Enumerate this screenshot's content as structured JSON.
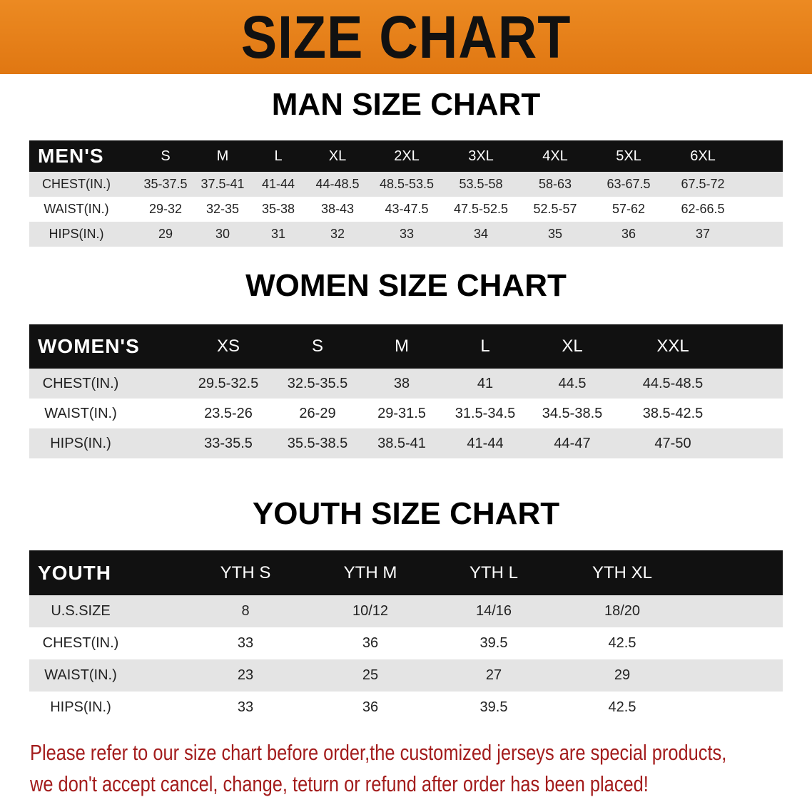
{
  "banner": {
    "title": "SIZE CHART"
  },
  "men": {
    "title": "MAN SIZE CHART",
    "header": [
      "MEN'S",
      "S",
      "M",
      "L",
      "XL",
      "2XL",
      "3XL",
      "4XL",
      "5XL",
      "6XL"
    ],
    "rows": [
      [
        "CHEST(IN.)",
        "35-37.5",
        "37.5-41",
        "41-44",
        "44-48.5",
        "48.5-53.5",
        "53.5-58",
        "58-63",
        "63-67.5",
        "67.5-72"
      ],
      [
        "WAIST(IN.)",
        "29-32",
        "32-35",
        "35-38",
        "38-43",
        "43-47.5",
        "47.5-52.5",
        "52.5-57",
        "57-62",
        "62-66.5"
      ],
      [
        "HIPS(IN.)",
        "29",
        "30",
        "31",
        "32",
        "33",
        "34",
        "35",
        "36",
        "37"
      ]
    ]
  },
  "women": {
    "title": "WOMEN SIZE CHART",
    "header": [
      "WOMEN'S",
      "XS",
      "S",
      "M",
      "L",
      "XL",
      "XXL"
    ],
    "rows": [
      [
        "CHEST(IN.)",
        "29.5-32.5",
        "32.5-35.5",
        "38",
        "41",
        "44.5",
        "44.5-48.5"
      ],
      [
        "WAIST(IN.)",
        "23.5-26",
        "26-29",
        "29-31.5",
        "31.5-34.5",
        "34.5-38.5",
        "38.5-42.5"
      ],
      [
        "HIPS(IN.)",
        "33-35.5",
        "35.5-38.5",
        "38.5-41",
        "41-44",
        "44-47",
        "47-50"
      ]
    ]
  },
  "youth": {
    "title": "YOUTH SIZE CHART",
    "header": [
      "YOUTH",
      "YTH S",
      "YTH M",
      "YTH L",
      "YTH XL"
    ],
    "rows": [
      [
        "U.S.SIZE",
        "8",
        "10/12",
        "14/16",
        "18/20"
      ],
      [
        "CHEST(IN.)",
        "33",
        "36",
        "39.5",
        "42.5"
      ],
      [
        "WAIST(IN.)",
        "23",
        "25",
        "27",
        "29"
      ],
      [
        "HIPS(IN.)",
        "33",
        "36",
        "39.5",
        "42.5"
      ]
    ]
  },
  "note": {
    "line1": "Please refer to our size chart before order,the customized jerseys are special products,",
    "line2": "we don't accept cancel, change, teturn or refund after order has been placed!"
  },
  "colors": {
    "banner": "#e8801a",
    "header_row": "#111111",
    "stripe": "#e4e4e4",
    "note": "#a31c1c"
  }
}
